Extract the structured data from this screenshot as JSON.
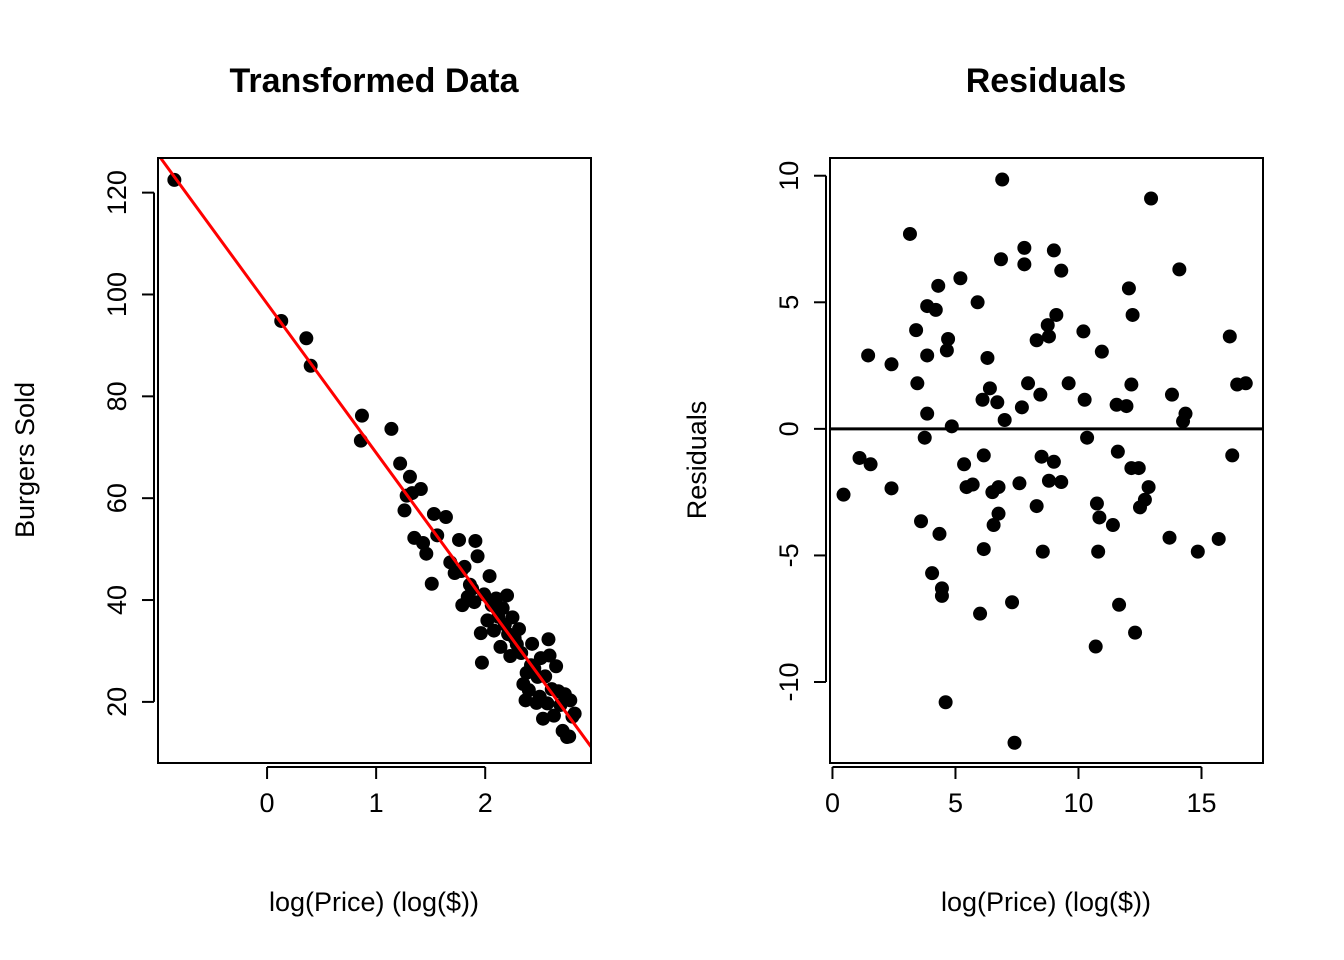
{
  "chart_data": [
    {
      "type": "scatter",
      "title": "Transformed Data",
      "xlabel": "log(Price) (log($))",
      "ylabel": "Burgers Sold",
      "xlim": [
        -1.0,
        2.97
      ],
      "ylim": [
        8.0,
        126.8
      ],
      "xticks": [
        0,
        1,
        2
      ],
      "xtick_labels": [
        "0",
        "1",
        "2"
      ],
      "yticks": [
        20,
        40,
        60,
        80,
        100,
        120
      ],
      "ytick_labels": [
        "20",
        "40",
        "60",
        "80",
        "100",
        "120"
      ],
      "fit_line": {
        "color": "#ff0000",
        "x": [
          -1.0,
          2.97
        ],
        "y": [
          127.5,
          11.2
        ]
      },
      "points": [
        [
          -0.85,
          122.5
        ],
        [
          0.13,
          94.8
        ],
        [
          0.36,
          91.4
        ],
        [
          0.4,
          86.0
        ],
        [
          0.86,
          71.3
        ],
        [
          0.87,
          76.2
        ],
        [
          1.14,
          73.6
        ],
        [
          1.22,
          66.8
        ],
        [
          1.26,
          57.6
        ],
        [
          1.28,
          60.5
        ],
        [
          1.31,
          64.2
        ],
        [
          1.33,
          61.0
        ],
        [
          1.35,
          52.2
        ],
        [
          1.41,
          61.8
        ],
        [
          1.43,
          51.2
        ],
        [
          1.46,
          49.1
        ],
        [
          1.51,
          43.2
        ],
        [
          1.53,
          56.9
        ],
        [
          1.56,
          52.7
        ],
        [
          1.64,
          56.3
        ],
        [
          1.68,
          47.4
        ],
        [
          1.72,
          45.3
        ],
        [
          1.76,
          51.8
        ],
        [
          1.78,
          45.7
        ],
        [
          1.79,
          39.0
        ],
        [
          1.81,
          46.5
        ],
        [
          1.84,
          40.6
        ],
        [
          1.86,
          43.0
        ],
        [
          1.88,
          42.2
        ],
        [
          1.9,
          39.6
        ],
        [
          1.91,
          51.6
        ],
        [
          1.93,
          48.6
        ],
        [
          1.96,
          33.5
        ],
        [
          1.97,
          27.7
        ],
        [
          1.99,
          41.1
        ],
        [
          2.02,
          36.0
        ],
        [
          2.04,
          44.7
        ],
        [
          2.06,
          39.0
        ],
        [
          2.08,
          34.0
        ],
        [
          2.1,
          40.3
        ],
        [
          2.12,
          36.7
        ],
        [
          2.14,
          30.8
        ],
        [
          2.16,
          38.4
        ],
        [
          2.18,
          35.2
        ],
        [
          2.2,
          40.9
        ],
        [
          2.21,
          33.3
        ],
        [
          2.23,
          29.0
        ],
        [
          2.25,
          36.6
        ],
        [
          2.27,
          32.5
        ],
        [
          2.29,
          31.3
        ],
        [
          2.31,
          34.3
        ],
        [
          2.33,
          29.6
        ],
        [
          2.35,
          23.5
        ],
        [
          2.37,
          20.3
        ],
        [
          2.38,
          25.7
        ],
        [
          2.4,
          22.3
        ],
        [
          2.42,
          27.2
        ],
        [
          2.43,
          31.4
        ],
        [
          2.45,
          26.6
        ],
        [
          2.47,
          19.8
        ],
        [
          2.48,
          24.9
        ],
        [
          2.5,
          21.0
        ],
        [
          2.51,
          28.6
        ],
        [
          2.53,
          16.7
        ],
        [
          2.55,
          25.0
        ],
        [
          2.57,
          19.7
        ],
        [
          2.58,
          32.3
        ],
        [
          2.59,
          29.1
        ],
        [
          2.61,
          22.5
        ],
        [
          2.63,
          17.3
        ],
        [
          2.65,
          27.0
        ],
        [
          2.67,
          22.1
        ],
        [
          2.69,
          19.4
        ],
        [
          2.71,
          14.3
        ],
        [
          2.73,
          21.5
        ],
        [
          2.75,
          13.1
        ],
        [
          2.77,
          13.2
        ],
        [
          2.78,
          20.3
        ],
        [
          2.8,
          17.1
        ],
        [
          2.82,
          17.7
        ]
      ]
    },
    {
      "type": "scatter",
      "title": "Residuals",
      "xlabel": "log(Price) (log($))",
      "ylabel": "Residuals",
      "xlim": [
        -0.1,
        17.5
      ],
      "ylim": [
        -13.2,
        10.7
      ],
      "xticks": [
        0,
        5,
        10,
        15
      ],
      "xtick_labels": [
        "0",
        "5",
        "10",
        "15"
      ],
      "yticks": [
        -10,
        -5,
        0,
        5,
        10
      ],
      "ytick_labels": [
        "-10",
        "-5",
        "0",
        "5",
        "10"
      ],
      "zero_line": {
        "y": 0,
        "color": "#000000"
      },
      "points": [
        [
          0.45,
          -2.6
        ],
        [
          1.1,
          -1.15
        ],
        [
          1.45,
          2.9
        ],
        [
          1.55,
          -1.4
        ],
        [
          2.4,
          2.55
        ],
        [
          2.4,
          -2.35
        ],
        [
          3.15,
          7.7
        ],
        [
          3.4,
          3.9
        ],
        [
          3.45,
          1.8
        ],
        [
          3.6,
          -3.65
        ],
        [
          3.75,
          -0.35
        ],
        [
          3.85,
          4.85
        ],
        [
          3.85,
          2.9
        ],
        [
          3.85,
          0.6
        ],
        [
          4.05,
          -5.7
        ],
        [
          4.2,
          4.7
        ],
        [
          4.3,
          5.65
        ],
        [
          4.35,
          -4.15
        ],
        [
          4.45,
          -6.3
        ],
        [
          4.45,
          -6.6
        ],
        [
          4.6,
          -10.8
        ],
        [
          4.65,
          3.1
        ],
        [
          4.7,
          3.55
        ],
        [
          4.85,
          0.1
        ],
        [
          5.2,
          5.95
        ],
        [
          5.35,
          -1.4
        ],
        [
          5.45,
          -2.3
        ],
        [
          5.7,
          -2.2
        ],
        [
          5.9,
          5.0
        ],
        [
          6.0,
          -7.3
        ],
        [
          6.1,
          1.15
        ],
        [
          6.15,
          -1.05
        ],
        [
          6.15,
          -4.75
        ],
        [
          6.3,
          2.8
        ],
        [
          6.4,
          1.6
        ],
        [
          6.5,
          -2.5
        ],
        [
          6.55,
          -3.8
        ],
        [
          6.7,
          1.05
        ],
        [
          6.75,
          -2.3
        ],
        [
          6.75,
          -3.35
        ],
        [
          6.85,
          6.7
        ],
        [
          6.9,
          9.85
        ],
        [
          7.0,
          0.35
        ],
        [
          7.3,
          -6.85
        ],
        [
          7.4,
          -12.4
        ],
        [
          7.6,
          -2.15
        ],
        [
          7.7,
          0.85
        ],
        [
          7.8,
          7.15
        ],
        [
          7.8,
          6.5
        ],
        [
          7.95,
          1.8
        ],
        [
          8.3,
          3.5
        ],
        [
          8.3,
          -3.05
        ],
        [
          8.45,
          1.35
        ],
        [
          8.5,
          -1.1
        ],
        [
          8.55,
          -4.85
        ],
        [
          8.75,
          4.1
        ],
        [
          8.8,
          3.65
        ],
        [
          8.8,
          -2.05
        ],
        [
          9.0,
          -1.3
        ],
        [
          9.0,
          7.05
        ],
        [
          9.1,
          4.5
        ],
        [
          9.3,
          6.25
        ],
        [
          9.3,
          -2.1
        ],
        [
          9.6,
          1.8
        ],
        [
          10.2,
          3.85
        ],
        [
          10.25,
          1.15
        ],
        [
          10.35,
          -0.35
        ],
        [
          10.7,
          -8.6
        ],
        [
          10.75,
          -2.95
        ],
        [
          10.8,
          -4.85
        ],
        [
          10.85,
          -3.5
        ],
        [
          10.95,
          3.05
        ],
        [
          11.4,
          -3.8
        ],
        [
          11.55,
          0.95
        ],
        [
          11.6,
          -0.9
        ],
        [
          11.65,
          -6.95
        ],
        [
          11.95,
          0.9
        ],
        [
          12.05,
          5.55
        ],
        [
          12.15,
          1.75
        ],
        [
          12.15,
          -1.55
        ],
        [
          12.2,
          4.5
        ],
        [
          12.3,
          -8.05
        ],
        [
          12.45,
          -1.55
        ],
        [
          12.5,
          -3.1
        ],
        [
          12.7,
          -2.8
        ],
        [
          12.85,
          -2.3
        ],
        [
          12.95,
          9.1
        ],
        [
          13.7,
          -4.3
        ],
        [
          13.8,
          1.35
        ],
        [
          14.1,
          6.3
        ],
        [
          14.25,
          0.3
        ],
        [
          14.35,
          0.6
        ],
        [
          14.85,
          -4.85
        ],
        [
          15.7,
          -4.35
        ],
        [
          16.15,
          3.65
        ],
        [
          16.25,
          -1.05
        ],
        [
          16.45,
          1.75
        ],
        [
          16.8,
          1.8
        ]
      ]
    }
  ]
}
